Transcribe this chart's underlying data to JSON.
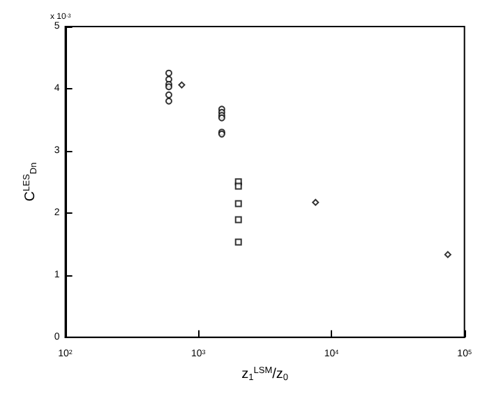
{
  "chart_data": {
    "type": "scatter",
    "xlabel": "z$_{1}$$^{LSM}$/z$_{0}$",
    "ylabel": "C$^{LES}$$_{Dn}$",
    "annotations": [
      "x 10$^{-3}$"
    ],
    "log": "x",
    "grid": false,
    "xlim": [
      100,
      100000
    ],
    "xticks": [
      {
        "value": 100,
        "label": "10$^{2}$"
      },
      {
        "value": 1000,
        "label": "10$^{3}$"
      },
      {
        "value": 10000,
        "label": "10$^{4}$"
      },
      {
        "value": 100000,
        "label": "10$^{5}$"
      }
    ],
    "ylim": [
      0,
      5
    ],
    "yticks": [
      0,
      1,
      2,
      3,
      4,
      5
    ],
    "series": [
      {
        "color": "#000000",
        "marker": "circle",
        "x": [
          600,
          600,
          600,
          600,
          600,
          600,
          1500,
          1500,
          1500,
          1500,
          1500,
          1500
        ],
        "values": [
          4.25,
          4.15,
          4.07,
          4.03,
          3.9,
          3.8,
          3.67,
          3.62,
          3.57,
          3.53,
          3.3,
          3.27
        ]
      },
      {
        "color": "#000000",
        "marker": "diamond",
        "x": [
          750,
          7600,
          75000
        ],
        "values": [
          4.06,
          2.17,
          1.33
        ]
      },
      {
        "color": "#000000",
        "marker": "square",
        "x": [
          2000,
          2000,
          2000,
          2000,
          2000
        ],
        "values": [
          2.5,
          2.43,
          2.15,
          1.89,
          1.53
        ]
      }
    ]
  }
}
